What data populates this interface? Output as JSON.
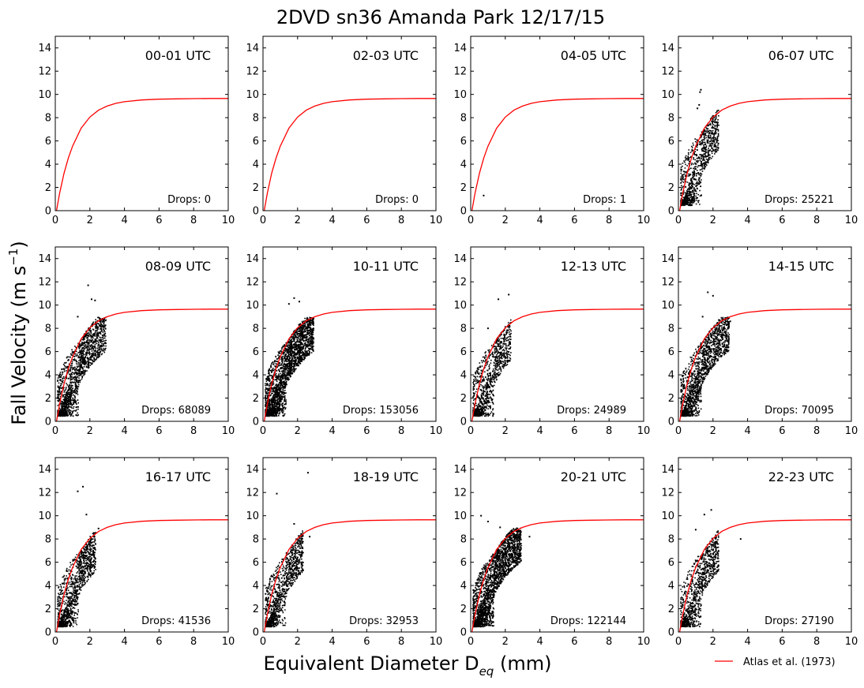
{
  "figure": {
    "title": "2DVD sn36 Amanda Park 12/17/15",
    "ylabel_main": "Fall Velocity (m s",
    "ylabel_exp": "−1",
    "ylabel_close": ")",
    "xlabel_main": "Equivalent Diameter D",
    "xlabel_sub": "eq",
    "xlabel_close": " (mm)",
    "legend_label": "Atlas et al. (1973)"
  },
  "colors": {
    "curve": "#ff0000",
    "points": "#000000",
    "axes": "#000000"
  },
  "chart_data": [
    {
      "type": "scatter",
      "label": "00-01 UTC",
      "drops_text": "Drops: 0",
      "xlim": [
        0,
        10
      ],
      "ylim": [
        0,
        15
      ],
      "x_ticks": [
        0,
        2,
        4,
        6,
        8,
        10
      ],
      "y_ticks": [
        0,
        2,
        4,
        6,
        8,
        10,
        12,
        14
      ],
      "series": [
        {
          "name": "Atlas et al. (1973)",
          "type": "line",
          "x": [
            0,
            0.25,
            0.5,
            0.75,
            1,
            1.5,
            2,
            2.5,
            3,
            3.5,
            4,
            5,
            6,
            7,
            8,
            9,
            10
          ],
          "y": [
            -0.6,
            1.5,
            3.2,
            4.5,
            5.55,
            7.1,
            8.05,
            8.65,
            9.0,
            9.23,
            9.37,
            9.52,
            9.59,
            9.62,
            9.64,
            9.65,
            9.65
          ]
        }
      ],
      "points": []
    },
    {
      "type": "scatter",
      "label": "02-03 UTC",
      "drops_text": "Drops: 0",
      "xlim": [
        0,
        10
      ],
      "ylim": [
        0,
        15
      ],
      "points": []
    },
    {
      "type": "scatter",
      "label": "04-05 UTC",
      "drops_text": "Drops: 1",
      "xlim": [
        0,
        10
      ],
      "ylim": [
        0,
        15
      ],
      "points": [
        [
          0.75,
          1.3
        ]
      ]
    },
    {
      "type": "scatter",
      "label": "06-07 UTC",
      "drops_text": "Drops: 25221",
      "xlim": [
        0,
        10
      ],
      "ylim": [
        0,
        15
      ],
      "points": [
        [
          1.3,
          10.4
        ],
        [
          1.25,
          10.2
        ],
        [
          1.2,
          9.1
        ],
        [
          1.1,
          8.8
        ]
      ]
    },
    {
      "type": "scatter",
      "label": "08-09 UTC",
      "drops_text": "Drops: 68089",
      "xlim": [
        0,
        10
      ],
      "ylim": [
        0,
        15
      ],
      "points": [
        [
          1.9,
          11.7
        ],
        [
          2.1,
          10.5
        ],
        [
          2.3,
          10.4
        ],
        [
          1.3,
          9.0
        ]
      ]
    },
    {
      "type": "scatter",
      "label": "10-11 UTC",
      "drops_text": "Drops: 153056",
      "xlim": [
        0,
        10
      ],
      "ylim": [
        0,
        15
      ],
      "points": [
        [
          1.8,
          10.6
        ],
        [
          2.1,
          10.3
        ],
        [
          1.5,
          10.1
        ],
        [
          2.6,
          8.3
        ]
      ]
    },
    {
      "type": "scatter",
      "label": "12-13 UTC",
      "drops_text": "Drops: 24989",
      "xlim": [
        0,
        10
      ],
      "ylim": [
        0,
        15
      ],
      "points": [
        [
          1.6,
          10.5
        ],
        [
          2.2,
          10.9
        ],
        [
          1.0,
          8.0
        ]
      ]
    },
    {
      "type": "scatter",
      "label": "14-15 UTC",
      "drops_text": "Drops: 70095",
      "xlim": [
        0,
        10
      ],
      "ylim": [
        0,
        15
      ],
      "points": [
        [
          1.7,
          11.1
        ],
        [
          2.0,
          10.8
        ],
        [
          1.4,
          9.0
        ],
        [
          3.0,
          8.6
        ]
      ]
    },
    {
      "type": "scatter",
      "label": "16-17 UTC",
      "drops_text": "Drops: 41536",
      "xlim": [
        0,
        10
      ],
      "ylim": [
        0,
        15
      ],
      "points": [
        [
          1.3,
          12.1
        ],
        [
          1.6,
          12.5
        ],
        [
          1.8,
          10.1
        ],
        [
          2.5,
          8.9
        ]
      ]
    },
    {
      "type": "scatter",
      "label": "18-19 UTC",
      "drops_text": "Drops: 32953",
      "xlim": [
        0,
        10
      ],
      "ylim": [
        0,
        15
      ],
      "points": [
        [
          0.8,
          11.9
        ],
        [
          2.6,
          13.7
        ],
        [
          1.8,
          9.3
        ],
        [
          2.7,
          8.2
        ]
      ]
    },
    {
      "type": "scatter",
      "label": "20-21 UTC",
      "drops_text": "Drops: 122144",
      "xlim": [
        0,
        10
      ],
      "ylim": [
        0,
        15
      ],
      "points": [
        [
          0.6,
          10.0
        ],
        [
          1.0,
          9.5
        ],
        [
          1.7,
          9.0
        ],
        [
          3.4,
          8.2
        ],
        [
          2.3,
          8.0
        ]
      ]
    },
    {
      "type": "scatter",
      "label": "22-23 UTC",
      "drops_text": "Drops: 27190",
      "xlim": [
        0,
        10
      ],
      "ylim": [
        0,
        15
      ],
      "points": [
        [
          1.9,
          10.5
        ],
        [
          1.5,
          10.1
        ],
        [
          3.6,
          8.0
        ],
        [
          1.0,
          8.8
        ]
      ]
    }
  ]
}
